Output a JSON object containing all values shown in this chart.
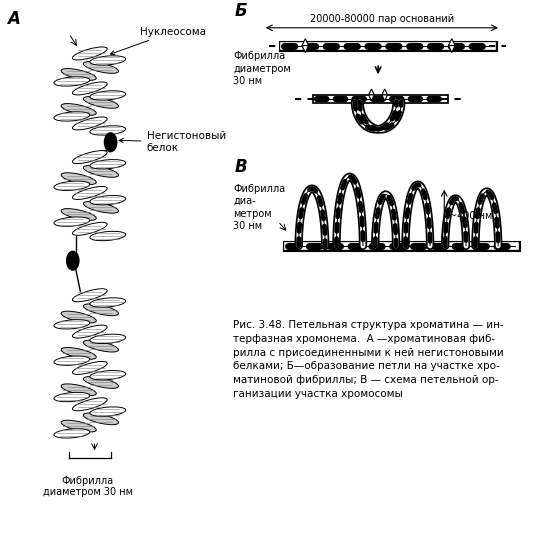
{
  "background_color": "#ffffff",
  "label_A": "А",
  "label_B_cyr": "Б",
  "label_V_cyr": "В",
  "label_nucleosome": "Нуклеосома",
  "label_nonhistone": "Негистоновый\nбелок",
  "label_fibril_bottom": "Фибрилла\nдиаметром 30 нм",
  "label_fibril_B_left": "Фибрилла\nдиаметром\n30 нм",
  "label_fibril_V_left": "Фибрилла\nдиа-\nметром\n30 нм",
  "label_bases": "20000-80000 пар оснований",
  "label_400nm": "~400 нм",
  "caption_line1": "Рис. 3.48. Петельная структура хроматина — ин-",
  "caption_line2": "терфазная хромонема.  А —хроматиновая фиб-",
  "caption_line3": "рилла с присоединенными к ней негистоновыми",
  "caption_line4": "белками; Б—образование петли на участке хро-",
  "caption_line5": "матиновой фибриллы; В — схема петельной ор-",
  "caption_line6": "ганизации участка хромосомы"
}
